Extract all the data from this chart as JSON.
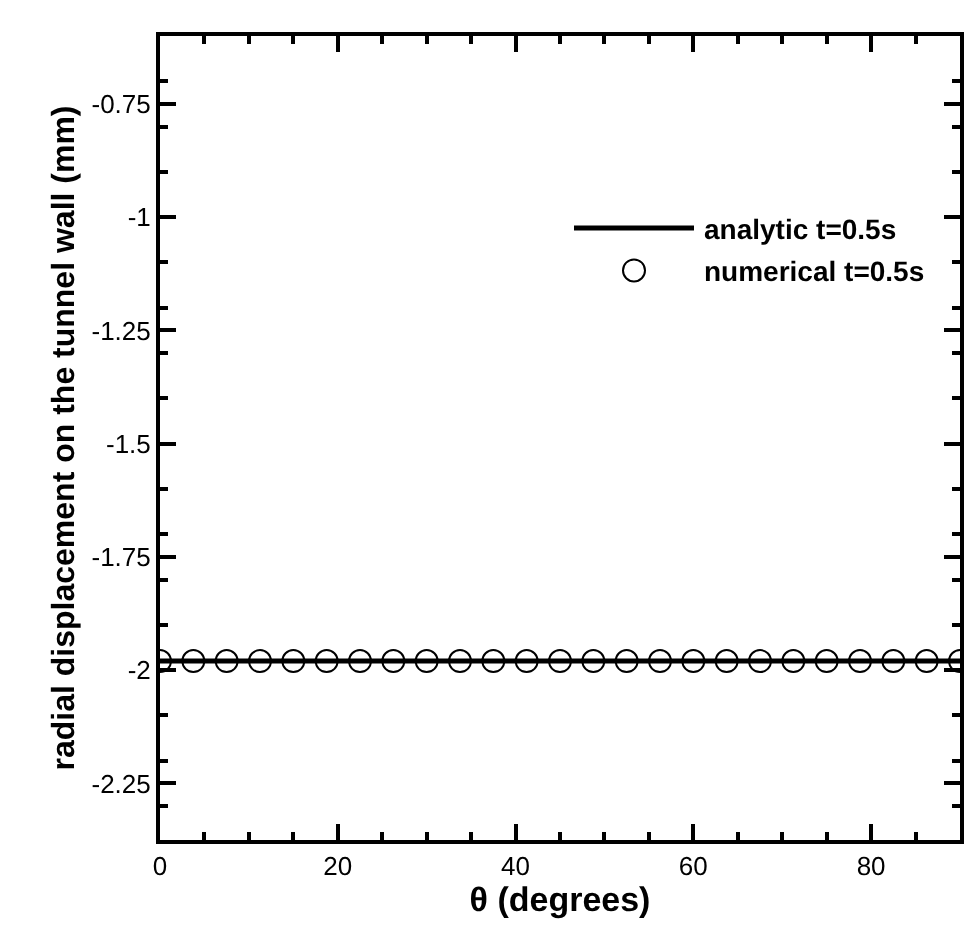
{
  "chart_data": {
    "type": "line",
    "xlabel": "θ (degrees)",
    "ylabel": "radial displacement on the tunnel wall (mm)",
    "xlim": [
      0,
      90
    ],
    "xticks": [
      0,
      20,
      40,
      60,
      80
    ],
    "ylim": [
      -2.375,
      -0.6
    ],
    "yticks": [
      -2.25,
      -2,
      -1.75,
      -1.5,
      -1.25,
      -1,
      -0.75
    ],
    "legend": "top right",
    "grid": false,
    "series": [
      {
        "name": "analytic t=0.5s",
        "color": "#000000",
        "marker": "none",
        "line_style": "solid",
        "x": [
          0,
          90
        ],
        "values": [
          -1.98,
          -1.98
        ]
      },
      {
        "name": "numerical t=0.5s",
        "type": "scatter",
        "color": "#000000",
        "marker": "circle",
        "x": [
          0,
          3.75,
          7.5,
          11.25,
          15,
          18.75,
          22.5,
          26.25,
          30,
          33.75,
          37.5,
          41.25,
          45,
          48.75,
          52.5,
          56.25,
          60,
          63.75,
          67.5,
          71.25,
          75,
          78.75,
          82.5,
          86.25,
          90
        ],
        "values": [
          -1.98,
          -1.98,
          -1.98,
          -1.98,
          -1.98,
          -1.98,
          -1.98,
          -1.98,
          -1.98,
          -1.98,
          -1.98,
          -1.98,
          -1.98,
          -1.98,
          -1.98,
          -1.98,
          -1.98,
          -1.98,
          -1.98,
          -1.98,
          -1.98,
          -1.98,
          -1.98,
          -1.98,
          -1.98
        ]
      }
    ]
  }
}
